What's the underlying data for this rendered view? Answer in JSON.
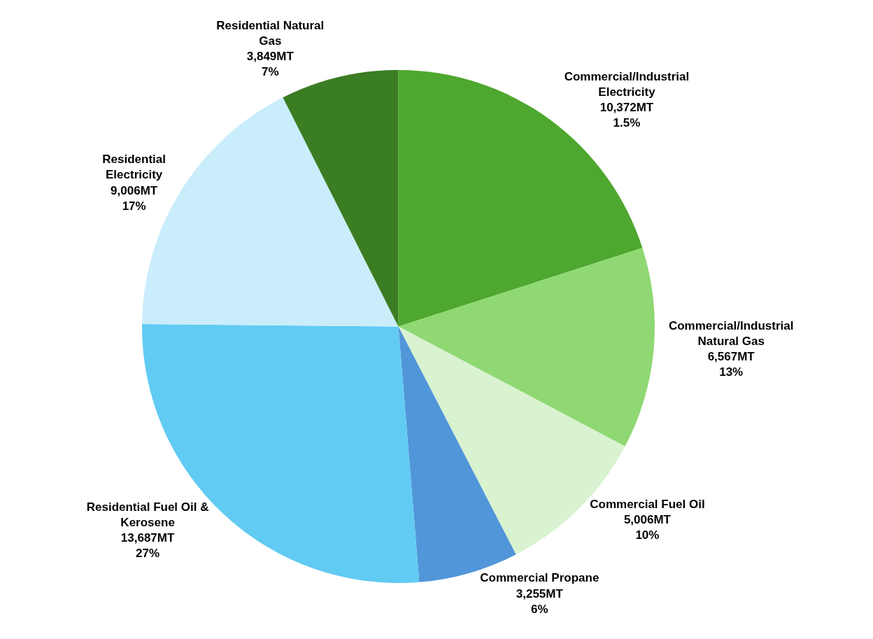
{
  "chart_data": {
    "type": "pie",
    "categories": [
      "Commercial/Industrial Electricity",
      "Commercial/Industrial Natural Gas",
      "Commercial Fuel Oil",
      "Commercial Propane",
      "Residential Fuel Oil & Kerosene",
      "Residential Electricity",
      "Residential Natural Gas"
    ],
    "values": [
      10372,
      6567,
      5006,
      3255,
      13687,
      9006,
      3849
    ],
    "value_labels": [
      "10,372MT\n1.5%",
      "6,567MT\n13%",
      "5,006MT\n10%",
      "3,255MT\n6%",
      "13,687MT\n27%",
      "9,006MT\n17%",
      "3,849MT\n7%"
    ],
    "colors": [
      "#4ea72e",
      "#8fd873",
      "#d9f2d0",
      "#5196d9",
      "#61cbf3",
      "#caedfb",
      "#3b7d23"
    ],
    "legend": false
  }
}
